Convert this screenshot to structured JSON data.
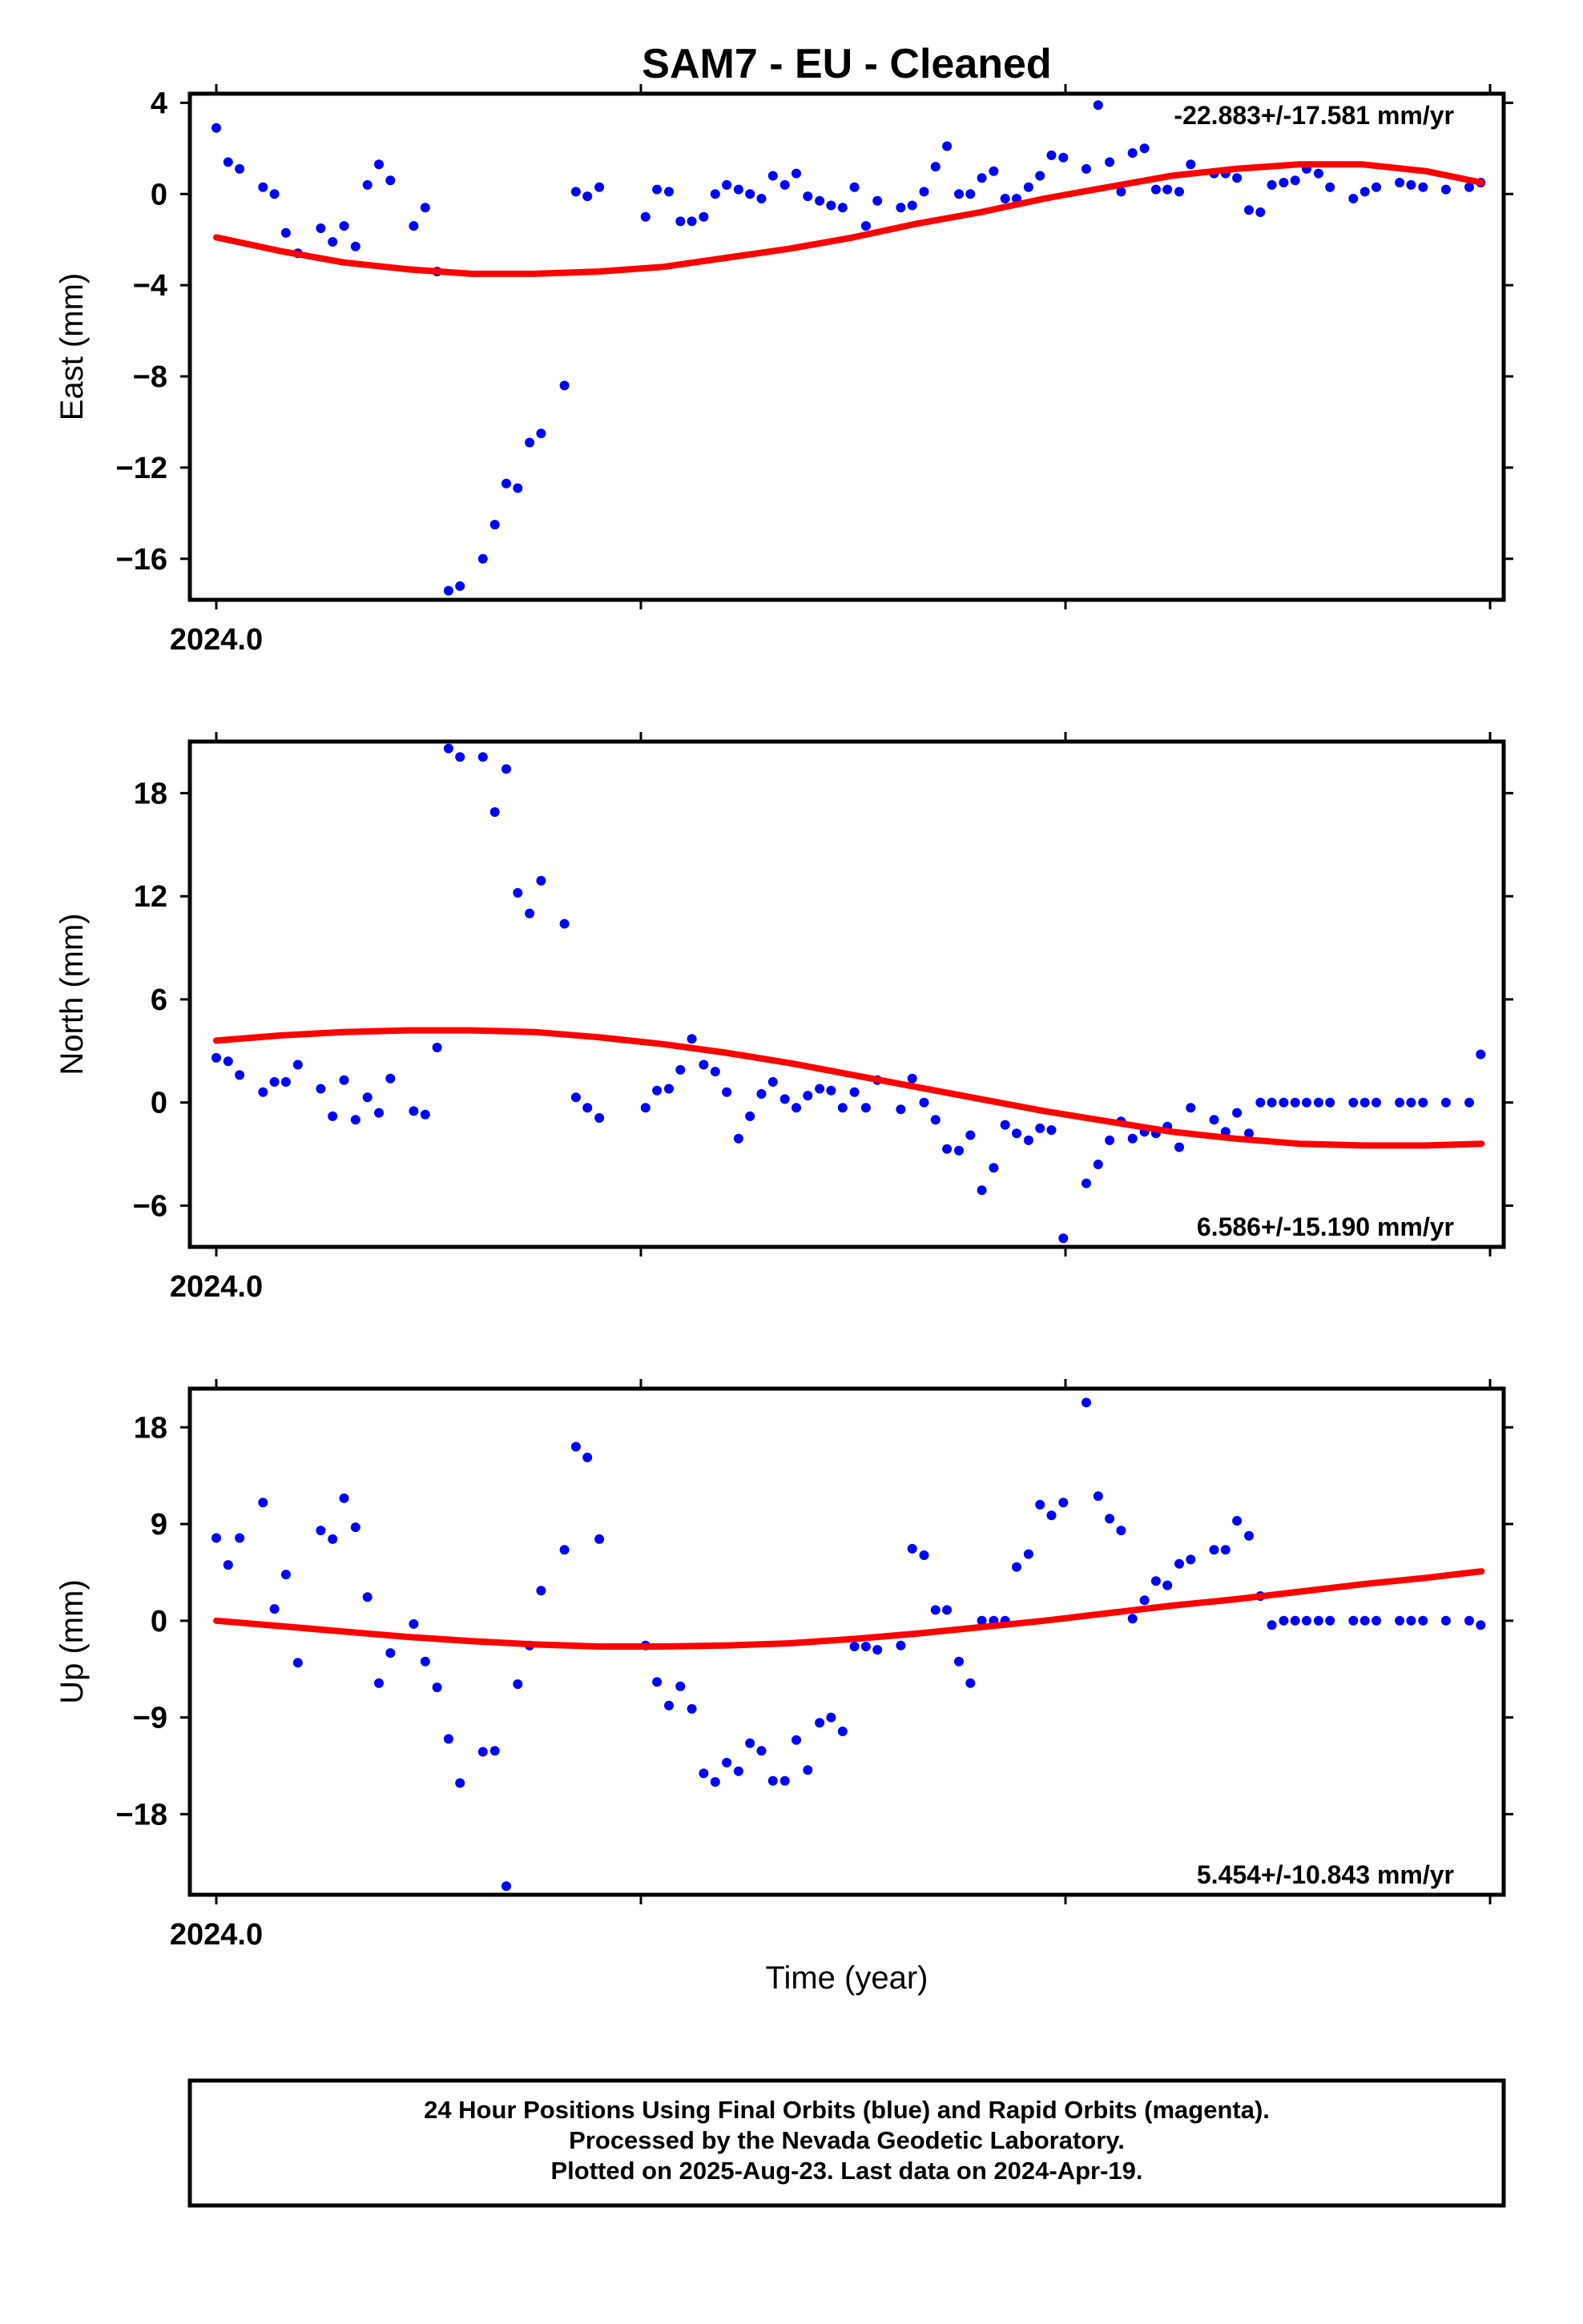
{
  "title": "SAM7  - EU - Cleaned",
  "xlabel": "Time (year)",
  "footer": [
    "24 Hour Positions Using Final Orbits (blue) and Rapid Orbits (magenta).",
    "Processed by the Nevada Geodetic Laboratory.",
    "Plotted on 2025-Aug-23. Last data on 2024-Apr-19."
  ],
  "colors": {
    "final_orbits": "#0000ff",
    "fit": "#ff0000",
    "frame": "#000000"
  },
  "chart_data": [
    {
      "type": "scatter",
      "ylabel": "East (mm)",
      "rate_text": "-22.883+/-17.581 mm/yr",
      "xlim": [
        2024.0,
        2024.3
      ],
      "ylim": [
        -17.8,
        4.4
      ],
      "yticks": [
        4,
        0,
        -4,
        -8,
        -12,
        -16
      ],
      "ytick_labels": [
        "4",
        "0",
        "−4",
        "−8",
        "−12",
        "−16"
      ],
      "xticks": [
        2024.0,
        2024.1,
        2024.2,
        2024.3
      ],
      "xtick_labels": [
        "2024.0",
        "",
        "",
        ""
      ],
      "series": [
        {
          "kind": "points",
          "x": [
            2024.0,
            2024.0028,
            2024.0055,
            2024.011,
            2024.0137,
            2024.0164,
            2024.0192,
            2024.0246,
            2024.0274,
            2024.0301,
            2024.0328,
            2024.0356,
            2024.0383,
            2024.041,
            2024.0465,
            2024.0492,
            2024.052,
            2024.0547,
            2024.0574,
            2024.0628,
            2024.0656,
            2024.0683,
            2024.071,
            2024.0738,
            2024.0765,
            2024.082,
            2024.0847,
            2024.0874,
            2024.0902,
            2024.1011,
            2024.1038,
            2024.1066,
            2024.1093,
            2024.112,
            2024.1148,
            2024.1175,
            2024.1202,
            2024.123,
            2024.1257,
            2024.1284,
            2024.1311,
            2024.1339,
            2024.1366,
            2024.1393,
            2024.1421,
            2024.1448,
            2024.1475,
            2024.1503,
            2024.153,
            2024.1557,
            2024.1612,
            2024.1639,
            2024.1667,
            2024.1694,
            2024.1721,
            2024.1749,
            2024.1776,
            2024.1803,
            2024.1831,
            2024.1858,
            2024.1885,
            2024.1913,
            2024.194,
            2024.1967,
            2024.1995,
            2024.2049,
            2024.2077,
            2024.2104,
            2024.2131,
            2024.2158,
            2024.2186,
            2024.2213,
            2024.224,
            2024.2268,
            2024.2295,
            2024.235,
            2024.2377,
            2024.2404,
            2024.2432,
            2024.2459,
            2024.2486,
            2024.2514,
            2024.2541,
            2024.2568,
            2024.2596,
            2024.2623,
            2024.2678,
            2024.2705,
            2024.2732,
            2024.2787,
            2024.2814,
            2024.2842,
            2024.2896,
            2024.2951,
            2024.2978
          ],
          "y": [
            2.9,
            1.4,
            1.1,
            0.3,
            0.0,
            -1.7,
            -2.6,
            -1.5,
            -2.1,
            -1.4,
            -2.3,
            0.4,
            1.3,
            0.6,
            -1.4,
            -0.6,
            -3.4,
            -17.4,
            -17.2,
            -16.0,
            -14.5,
            -12.7,
            -12.9,
            -10.9,
            -10.5,
            -8.4,
            0.1,
            -0.1,
            0.3,
            -1.0,
            0.2,
            0.1,
            -1.2,
            -1.2,
            -1.0,
            0.0,
            0.4,
            0.2,
            0.0,
            -0.2,
            0.8,
            0.4,
            0.9,
            -0.1,
            -0.3,
            -0.5,
            -0.6,
            0.3,
            -1.4,
            -0.3,
            -0.6,
            -0.5,
            0.1,
            1.2,
            2.1,
            0.0,
            0.0,
            0.7,
            1.0,
            -0.2,
            -0.2,
            0.3,
            0.8,
            1.7,
            1.6,
            1.1,
            3.9,
            1.4,
            0.1,
            1.8,
            2.0,
            0.2,
            0.2,
            0.1,
            1.3,
            0.9,
            0.9,
            0.7,
            -0.7,
            -0.8,
            0.4,
            0.5,
            0.6,
            1.1,
            0.9,
            0.3,
            -0.2,
            0.1,
            0.3,
            0.5,
            0.4,
            0.3,
            0.2,
            0.3,
            0.5
          ]
        },
        {
          "kind": "fit",
          "x": [
            2024.0,
            2024.015,
            2024.03,
            2024.045,
            2024.06,
            2024.075,
            2024.09,
            2024.105,
            2024.12,
            2024.135,
            2024.15,
            2024.165,
            2024.18,
            2024.195,
            2024.21,
            2024.225,
            2024.24,
            2024.255,
            2024.27,
            2024.285,
            2024.298
          ],
          "y": [
            -1.9,
            -2.5,
            -3.0,
            -3.3,
            -3.5,
            -3.5,
            -3.4,
            -3.2,
            -2.8,
            -2.4,
            -1.9,
            -1.3,
            -0.8,
            -0.2,
            0.3,
            0.8,
            1.1,
            1.3,
            1.3,
            1.0,
            0.5
          ]
        }
      ]
    },
    {
      "type": "scatter",
      "ylabel": "North (mm)",
      "rate_text": "6.586+/-15.190 mm/yr",
      "xlim": [
        2024.0,
        2024.3
      ],
      "ylim": [
        -8.4,
        21.0
      ],
      "yticks": [
        18,
        12,
        6,
        0,
        -6
      ],
      "ytick_labels": [
        "18",
        "12",
        "6",
        "0",
        "−6"
      ],
      "xticks": [
        2024.0,
        2024.1,
        2024.2,
        2024.3
      ],
      "xtick_labels": [
        "2024.0",
        "",
        "",
        ""
      ],
      "series": [
        {
          "kind": "points",
          "x": [
            2024.0,
            2024.0028,
            2024.0055,
            2024.011,
            2024.0137,
            2024.0164,
            2024.0192,
            2024.0246,
            2024.0274,
            2024.0301,
            2024.0328,
            2024.0356,
            2024.0383,
            2024.041,
            2024.0465,
            2024.0492,
            2024.052,
            2024.0547,
            2024.0574,
            2024.0628,
            2024.0656,
            2024.0683,
            2024.071,
            2024.0738,
            2024.0765,
            2024.082,
            2024.0847,
            2024.0874,
            2024.0902,
            2024.1011,
            2024.1038,
            2024.1066,
            2024.1093,
            2024.112,
            2024.1148,
            2024.1175,
            2024.1202,
            2024.123,
            2024.1257,
            2024.1284,
            2024.1311,
            2024.1339,
            2024.1366,
            2024.1393,
            2024.1421,
            2024.1448,
            2024.1475,
            2024.1503,
            2024.153,
            2024.1557,
            2024.1612,
            2024.1639,
            2024.1667,
            2024.1694,
            2024.1721,
            2024.1749,
            2024.1776,
            2024.1803,
            2024.1831,
            2024.1858,
            2024.1885,
            2024.1913,
            2024.194,
            2024.1967,
            2024.1995,
            2024.2049,
            2024.2077,
            2024.2104,
            2024.2131,
            2024.2158,
            2024.2186,
            2024.2213,
            2024.224,
            2024.2268,
            2024.2295,
            2024.235,
            2024.2377,
            2024.2404,
            2024.2432,
            2024.2459,
            2024.2486,
            2024.2514,
            2024.2541,
            2024.2568,
            2024.2596,
            2024.2623,
            2024.2678,
            2024.2705,
            2024.2732,
            2024.2787,
            2024.2814,
            2024.2842,
            2024.2896,
            2024.2951,
            2024.2978
          ],
          "y": [
            2.6,
            2.4,
            1.6,
            0.6,
            1.2,
            1.2,
            2.2,
            0.8,
            -0.8,
            1.3,
            -1.0,
            0.3,
            -0.6,
            1.4,
            -0.5,
            -0.7,
            3.2,
            20.6,
            20.1,
            20.1,
            16.9,
            19.4,
            12.2,
            11.0,
            12.9,
            10.4,
            0.3,
            -0.3,
            -0.9,
            -0.3,
            0.7,
            0.8,
            1.9,
            3.7,
            2.2,
            1.8,
            0.6,
            -2.1,
            -0.8,
            0.5,
            1.2,
            0.2,
            -0.3,
            0.4,
            0.8,
            0.7,
            -0.3,
            0.6,
            -0.3,
            1.3,
            -0.4,
            1.4,
            0.0,
            -1.0,
            -2.7,
            -2.8,
            -1.9,
            -5.1,
            -3.8,
            -1.3,
            -1.8,
            -2.2,
            -1.5,
            -1.6,
            -7.9,
            -4.7,
            -3.6,
            -2.2,
            -1.1,
            -2.1,
            -1.7,
            -1.8,
            -1.4,
            -2.6,
            -0.3,
            -1.0,
            -1.7,
            -0.6,
            -1.8,
            0.0,
            0.0,
            0.0,
            0.0,
            0.0,
            0.0,
            0.0,
            0.0,
            0.0,
            0.0,
            0.0,
            0.0,
            0.0,
            0.0,
            0.0,
            2.8
          ]
        },
        {
          "kind": "fit",
          "x": [
            2024.0,
            2024.015,
            2024.03,
            2024.045,
            2024.06,
            2024.075,
            2024.09,
            2024.105,
            2024.12,
            2024.135,
            2024.15,
            2024.165,
            2024.18,
            2024.195,
            2024.21,
            2024.225,
            2024.24,
            2024.255,
            2024.27,
            2024.285,
            2024.298
          ],
          "y": [
            3.6,
            3.9,
            4.1,
            4.2,
            4.2,
            4.1,
            3.8,
            3.4,
            2.9,
            2.3,
            1.6,
            0.9,
            0.2,
            -0.5,
            -1.1,
            -1.7,
            -2.1,
            -2.4,
            -2.5,
            -2.5,
            -2.4
          ]
        }
      ]
    },
    {
      "type": "scatter",
      "ylabel": "Up (mm)",
      "rate_text": "5.454+/-10.843 mm/yr",
      "xlim": [
        2024.0,
        2024.3
      ],
      "ylim": [
        -25.5,
        21.6
      ],
      "yticks": [
        18,
        9,
        0,
        -9,
        -18
      ],
      "ytick_labels": [
        "18",
        "9",
        "0",
        "−9",
        "−18"
      ],
      "xticks": [
        2024.0,
        2024.1,
        2024.2,
        2024.3
      ],
      "xtick_labels": [
        "2024.0",
        "",
        "",
        ""
      ],
      "series": [
        {
          "kind": "points",
          "x": [
            2024.0,
            2024.0028,
            2024.0055,
            2024.011,
            2024.0137,
            2024.0164,
            2024.0192,
            2024.0246,
            2024.0274,
            2024.0301,
            2024.0328,
            2024.0356,
            2024.0383,
            2024.041,
            2024.0465,
            2024.0492,
            2024.052,
            2024.0547,
            2024.0574,
            2024.0628,
            2024.0656,
            2024.0683,
            2024.071,
            2024.0738,
            2024.0765,
            2024.082,
            2024.0847,
            2024.0874,
            2024.0902,
            2024.1011,
            2024.1038,
            2024.1066,
            2024.1093,
            2024.112,
            2024.1148,
            2024.1175,
            2024.1202,
            2024.123,
            2024.1257,
            2024.1284,
            2024.1311,
            2024.1339,
            2024.1366,
            2024.1393,
            2024.1421,
            2024.1448,
            2024.1475,
            2024.1503,
            2024.153,
            2024.1557,
            2024.1612,
            2024.1639,
            2024.1667,
            2024.1694,
            2024.1721,
            2024.1749,
            2024.1776,
            2024.1803,
            2024.1831,
            2024.1858,
            2024.1885,
            2024.1913,
            2024.194,
            2024.1967,
            2024.1995,
            2024.2049,
            2024.2077,
            2024.2104,
            2024.2131,
            2024.2158,
            2024.2186,
            2024.2213,
            2024.224,
            2024.2268,
            2024.2295,
            2024.235,
            2024.2377,
            2024.2404,
            2024.2432,
            2024.2459,
            2024.2486,
            2024.2514,
            2024.2541,
            2024.2568,
            2024.2596,
            2024.2623,
            2024.2678,
            2024.2705,
            2024.2732,
            2024.2787,
            2024.2814,
            2024.2842,
            2024.2896,
            2024.2951,
            2024.2978
          ],
          "y": [
            7.7,
            5.2,
            7.7,
            11.0,
            1.1,
            4.3,
            -3.9,
            8.4,
            7.6,
            11.4,
            8.7,
            2.2,
            -5.8,
            -3.0,
            -0.3,
            -3.8,
            -6.2,
            -11.0,
            -15.1,
            -12.2,
            -12.1,
            -24.7,
            -5.9,
            -2.3,
            2.8,
            6.6,
            16.2,
            15.2,
            7.6,
            -2.3,
            -5.7,
            -7.9,
            -6.1,
            -8.2,
            -14.2,
            -15.0,
            -13.2,
            -14.0,
            -11.4,
            -12.1,
            -14.9,
            -14.9,
            -11.1,
            -13.9,
            -9.5,
            -9.0,
            -10.3,
            -2.4,
            -2.4,
            -2.7,
            -2.3,
            6.7,
            6.1,
            1.0,
            1.0,
            -3.8,
            -5.8,
            0.0,
            0.0,
            0.0,
            5.0,
            6.2,
            10.8,
            9.8,
            11.0,
            20.3,
            11.6,
            9.5,
            8.4,
            0.2,
            1.9,
            3.7,
            3.3,
            5.3,
            5.7,
            6.6,
            6.6,
            9.3,
            7.9,
            2.3,
            -0.4,
            0.0,
            0.0,
            0.0,
            0.0,
            0.0,
            0.0,
            0.0,
            0.0,
            0.0,
            0.0,
            0.0,
            0.0,
            0.0,
            -0.4
          ]
        },
        {
          "kind": "fit",
          "x": [
            2024.0,
            2024.015,
            2024.03,
            2024.045,
            2024.06,
            2024.075,
            2024.09,
            2024.105,
            2024.12,
            2024.135,
            2024.15,
            2024.165,
            2024.18,
            2024.195,
            2024.21,
            2024.225,
            2024.24,
            2024.255,
            2024.27,
            2024.285,
            2024.298
          ],
          "y": [
            0.0,
            -0.5,
            -1.0,
            -1.5,
            -1.9,
            -2.2,
            -2.4,
            -2.4,
            -2.3,
            -2.1,
            -1.7,
            -1.2,
            -0.6,
            0.0,
            0.7,
            1.4,
            2.0,
            2.7,
            3.4,
            4.0,
            4.6
          ]
        }
      ]
    }
  ]
}
